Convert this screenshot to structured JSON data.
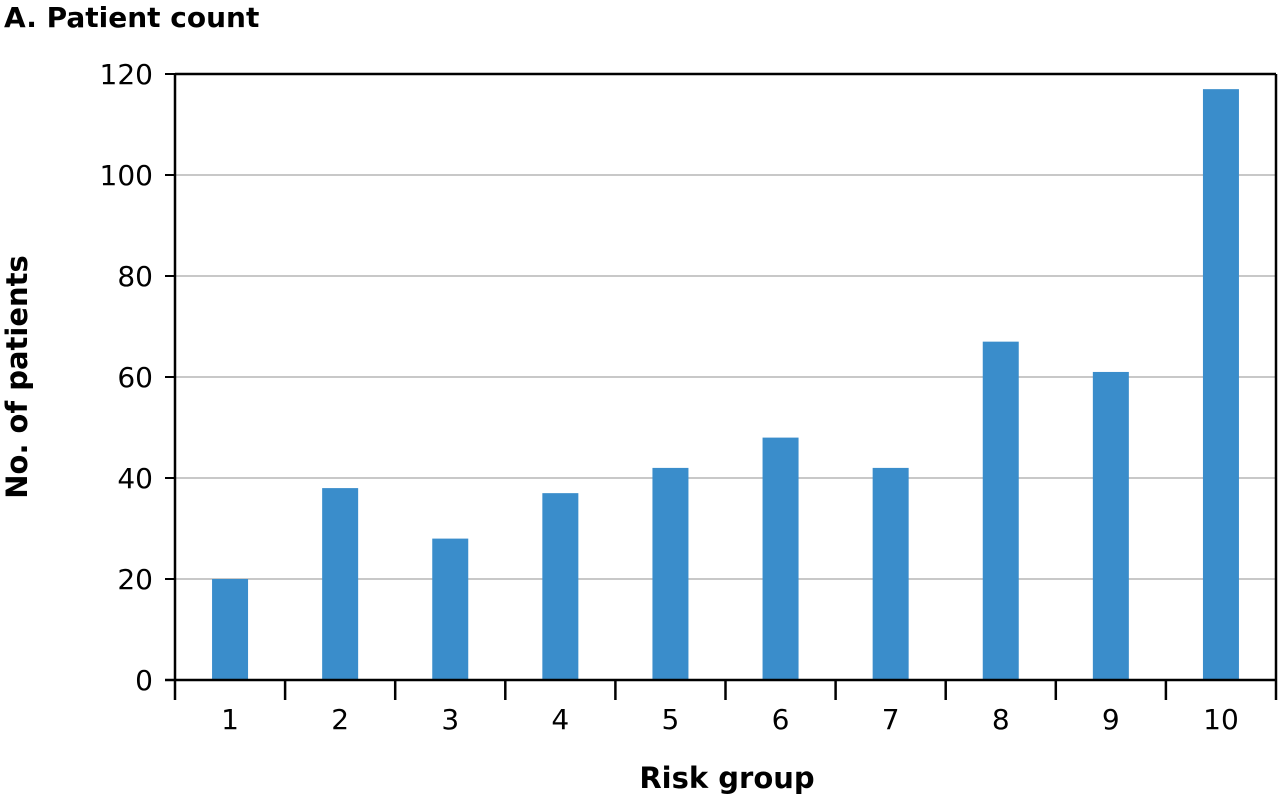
{
  "chart_data": {
    "type": "bar",
    "title": "A. Patient count",
    "xlabel": "Risk group",
    "ylabel": "No. of patients",
    "categories": [
      "1",
      "2",
      "3",
      "4",
      "5",
      "6",
      "7",
      "8",
      "9",
      "10"
    ],
    "values": [
      20,
      38,
      28,
      37,
      42,
      48,
      42,
      67,
      61,
      117
    ],
    "ylim": [
      0,
      120
    ],
    "yticks": [
      "0",
      "20",
      "40",
      "60",
      "80",
      "100",
      "120"
    ],
    "grid": true,
    "bar_color": "#3a8dcb",
    "grid_color": "#c8c8c8",
    "axis_color": "#000000"
  }
}
